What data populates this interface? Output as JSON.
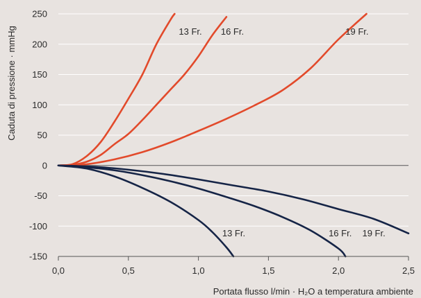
{
  "chart_data": {
    "type": "line",
    "title": "",
    "xlabel": "Portata flusso l/min · H₂O a temperatura ambiente",
    "ylabel": "Caduta di pressione · mmHg",
    "xlim": [
      0,
      2.5
    ],
    "ylim": [
      -150,
      250
    ],
    "x_ticks": [
      {
        "value": 0,
        "label": "0,0"
      },
      {
        "value": 0.5,
        "label": "0,5"
      },
      {
        "value": 1.0,
        "label": "1,0"
      },
      {
        "value": 1.5,
        "label": "1,5"
      },
      {
        "value": 2.0,
        "label": "2,0"
      },
      {
        "value": 2.5,
        "label": "2,5"
      }
    ],
    "y_ticks": [
      {
        "value": 250,
        "label": "250"
      },
      {
        "value": 200,
        "label": "200"
      },
      {
        "value": 150,
        "label": "150"
      },
      {
        "value": 100,
        "label": "100"
      },
      {
        "value": 50,
        "label": "50"
      },
      {
        "value": 0,
        "label": "0"
      },
      {
        "value": -50,
        "label": "-50"
      },
      {
        "value": -100,
        "label": "-100"
      },
      {
        "value": -150,
        "label": "-150"
      }
    ],
    "grid": {
      "horizontal": true,
      "vertical": false
    },
    "colors": {
      "positive": "#e24a2b",
      "negative": "#152446",
      "grid": "#ffffff",
      "background": "#e8e3e0"
    },
    "series": [
      {
        "name": "13 Fr.",
        "group": "positive",
        "x": [
          0,
          0.1,
          0.2,
          0.3,
          0.4,
          0.5,
          0.6,
          0.7,
          0.8,
          0.83
        ],
        "y": [
          0,
          2,
          15,
          38,
          72,
          110,
          150,
          200,
          240,
          250
        ]
      },
      {
        "name": "16 Fr.",
        "group": "positive",
        "x": [
          0,
          0.1,
          0.2,
          0.3,
          0.4,
          0.5,
          0.6,
          0.7,
          0.8,
          0.9,
          1.0,
          1.1,
          1.2
        ],
        "y": [
          0,
          1,
          6,
          17,
          35,
          52,
          75,
          100,
          125,
          150,
          180,
          215,
          245
        ]
      },
      {
        "name": "19 Fr.",
        "group": "positive",
        "x": [
          0,
          0.2,
          0.4,
          0.6,
          0.8,
          1.0,
          1.2,
          1.4,
          1.6,
          1.8,
          2.0,
          2.2
        ],
        "y": [
          0,
          2,
          10,
          22,
          38,
          57,
          77,
          99,
          124,
          160,
          208,
          250
        ]
      },
      {
        "name": "13 Fr.",
        "group": "negative",
        "x": [
          0,
          0.2,
          0.4,
          0.6,
          0.8,
          1.0,
          1.1,
          1.2,
          1.25
        ],
        "y": [
          0,
          -5,
          -18,
          -37,
          -60,
          -90,
          -110,
          -135,
          -150
        ]
      },
      {
        "name": "16 Fr.",
        "group": "negative",
        "x": [
          0,
          0.2,
          0.4,
          0.6,
          0.8,
          1.0,
          1.2,
          1.4,
          1.6,
          1.8,
          2.0,
          2.05
        ],
        "y": [
          0,
          -3,
          -8,
          -16,
          -26,
          -38,
          -52,
          -67,
          -85,
          -107,
          -137,
          -150
        ]
      },
      {
        "name": "19 Fr.",
        "group": "negative",
        "x": [
          0,
          0.25,
          0.5,
          0.75,
          1.0,
          1.25,
          1.5,
          1.75,
          2.0,
          2.25,
          2.5
        ],
        "y": [
          0,
          -2,
          -7,
          -14,
          -23,
          -33,
          -43,
          -56,
          -72,
          -88,
          -112
        ]
      }
    ],
    "annotations": [
      {
        "text": "13 Fr.",
        "x": 0.86,
        "y": 216
      },
      {
        "text": "16 Fr.",
        "x": 1.16,
        "y": 216
      },
      {
        "text": "19 Fr.",
        "x": 2.05,
        "y": 216
      },
      {
        "text": "13 Fr.",
        "x": 1.17,
        "y": -117
      },
      {
        "text": "16 Fr.",
        "x": 1.93,
        "y": -117
      },
      {
        "text": "19 Fr.",
        "x": 2.17,
        "y": -117
      }
    ]
  }
}
